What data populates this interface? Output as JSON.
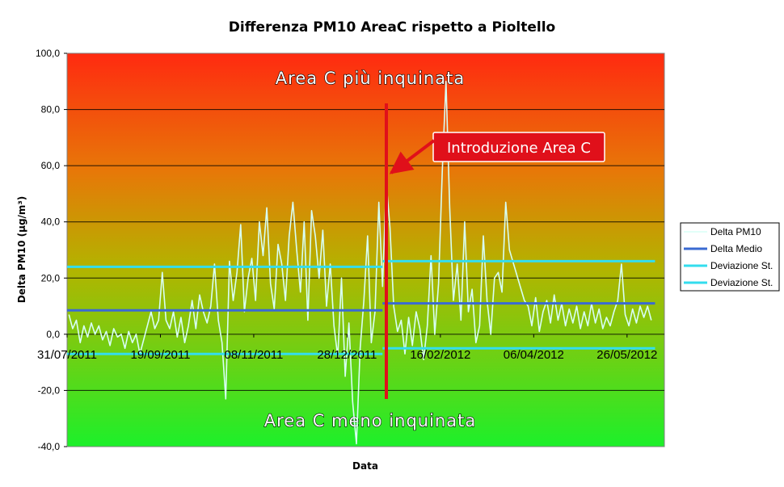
{
  "chart_data": {
    "type": "line",
    "title": "Differenza PM10 AreaC rispetto a Pioltello",
    "xlabel": "Data",
    "ylabel": "Delta PM10 (µg/m³)",
    "ylim": [
      -40,
      100
    ],
    "yticks": [
      "100,0",
      "80,0",
      "60,0",
      "40,0",
      "20,0",
      "0,0",
      "-20,0",
      "-40,0"
    ],
    "xlim": [
      "2011-07-31",
      "2012-06-15"
    ],
    "xticks": [
      {
        "date": "2011-07-31",
        "label": "31/07/2011"
      },
      {
        "date": "2011-09-19",
        "label": "19/09/2011"
      },
      {
        "date": "2011-11-08",
        "label": "08/11/2011"
      },
      {
        "date": "2011-12-28",
        "label": "28/12/2011"
      },
      {
        "date": "2012-02-16",
        "label": "16/02/2012"
      },
      {
        "date": "2012-04-06",
        "label": "06/04/2012"
      },
      {
        "date": "2012-05-26",
        "label": "26/05/2012"
      }
    ],
    "grid": true,
    "legend_position": "right",
    "annotations": {
      "top_region": "Area C più inquinata",
      "bottom_region": "Area C meno inquinata",
      "callout": "Introduzione Area C",
      "intervention_date": "2012-01-16"
    },
    "series": [
      {
        "name": "Delta PM10",
        "color": "#d8fff5",
        "kind": "line",
        "points": [
          [
            "2011-08-01",
            7
          ],
          [
            "2011-08-03",
            2
          ],
          [
            "2011-08-05",
            5
          ],
          [
            "2011-08-07",
            -3
          ],
          [
            "2011-08-09",
            3
          ],
          [
            "2011-08-11",
            -1
          ],
          [
            "2011-08-13",
            4
          ],
          [
            "2011-08-15",
            0
          ],
          [
            "2011-08-17",
            3
          ],
          [
            "2011-08-19",
            -2
          ],
          [
            "2011-08-21",
            1
          ],
          [
            "2011-08-23",
            -4
          ],
          [
            "2011-08-25",
            2
          ],
          [
            "2011-08-27",
            -1
          ],
          [
            "2011-08-29",
            0
          ],
          [
            "2011-08-31",
            -5
          ],
          [
            "2011-09-02",
            1
          ],
          [
            "2011-09-04",
            -3
          ],
          [
            "2011-09-06",
            0
          ],
          [
            "2011-09-08",
            -7
          ],
          [
            "2011-09-10",
            -2
          ],
          [
            "2011-09-12",
            3
          ],
          [
            "2011-09-14",
            8
          ],
          [
            "2011-09-16",
            2
          ],
          [
            "2011-09-18",
            5
          ],
          [
            "2011-09-20",
            22
          ],
          [
            "2011-09-22",
            5
          ],
          [
            "2011-09-24",
            2
          ],
          [
            "2011-09-26",
            8
          ],
          [
            "2011-09-28",
            -1
          ],
          [
            "2011-09-30",
            6
          ],
          [
            "2011-10-02",
            -3
          ],
          [
            "2011-10-04",
            3
          ],
          [
            "2011-10-06",
            12
          ],
          [
            "2011-10-08",
            2
          ],
          [
            "2011-10-10",
            14
          ],
          [
            "2011-10-12",
            8
          ],
          [
            "2011-10-14",
            4
          ],
          [
            "2011-10-16",
            10
          ],
          [
            "2011-10-18",
            25
          ],
          [
            "2011-10-20",
            5
          ],
          [
            "2011-10-22",
            -3
          ],
          [
            "2011-10-24",
            -23
          ],
          [
            "2011-10-26",
            26
          ],
          [
            "2011-10-28",
            12
          ],
          [
            "2011-10-30",
            22
          ],
          [
            "2011-11-01",
            39
          ],
          [
            "2011-11-03",
            8
          ],
          [
            "2011-11-05",
            20
          ],
          [
            "2011-11-07",
            27
          ],
          [
            "2011-11-09",
            12
          ],
          [
            "2011-11-11",
            40
          ],
          [
            "2011-11-13",
            28
          ],
          [
            "2011-11-15",
            45
          ],
          [
            "2011-11-17",
            18
          ],
          [
            "2011-11-19",
            9
          ],
          [
            "2011-11-21",
            32
          ],
          [
            "2011-11-23",
            25
          ],
          [
            "2011-11-25",
            12
          ],
          [
            "2011-11-27",
            35
          ],
          [
            "2011-11-29",
            47
          ],
          [
            "2011-12-01",
            30
          ],
          [
            "2011-12-03",
            15
          ],
          [
            "2011-12-05",
            40
          ],
          [
            "2011-12-07",
            5
          ],
          [
            "2011-12-09",
            44
          ],
          [
            "2011-12-11",
            35
          ],
          [
            "2011-12-13",
            20
          ],
          [
            "2011-12-15",
            37
          ],
          [
            "2011-12-17",
            10
          ],
          [
            "2011-12-19",
            25
          ],
          [
            "2011-12-21",
            3
          ],
          [
            "2011-12-23",
            -8
          ],
          [
            "2011-12-25",
            20
          ],
          [
            "2011-12-27",
            -15
          ],
          [
            "2011-12-29",
            4
          ],
          [
            "2011-12-31",
            -24
          ],
          [
            "2012-01-02",
            -39
          ],
          [
            "2012-01-04",
            -5
          ],
          [
            "2012-01-06",
            12
          ],
          [
            "2012-01-08",
            35
          ],
          [
            "2012-01-10",
            -3
          ],
          [
            "2012-01-12",
            8
          ],
          [
            "2012-01-14",
            47
          ],
          [
            "2012-01-16",
            17
          ],
          [
            "2012-01-18",
            54
          ],
          [
            "2012-01-20",
            38
          ],
          [
            "2012-01-22",
            10
          ],
          [
            "2012-01-24",
            1
          ],
          [
            "2012-01-26",
            5
          ],
          [
            "2012-01-28",
            -7
          ],
          [
            "2012-01-30",
            6
          ],
          [
            "2012-02-01",
            -4
          ],
          [
            "2012-02-03",
            8
          ],
          [
            "2012-02-05",
            2
          ],
          [
            "2012-02-07",
            -9
          ],
          [
            "2012-02-09",
            3
          ],
          [
            "2012-02-11",
            28
          ],
          [
            "2012-02-13",
            0
          ],
          [
            "2012-02-15",
            18
          ],
          [
            "2012-02-17",
            58
          ],
          [
            "2012-02-19",
            90
          ],
          [
            "2012-02-21",
            45
          ],
          [
            "2012-02-23",
            12
          ],
          [
            "2012-02-25",
            25
          ],
          [
            "2012-02-27",
            5
          ],
          [
            "2012-02-29",
            40
          ],
          [
            "2012-03-02",
            8
          ],
          [
            "2012-03-04",
            16
          ],
          [
            "2012-03-06",
            -3
          ],
          [
            "2012-03-08",
            3
          ],
          [
            "2012-03-10",
            35
          ],
          [
            "2012-03-12",
            12
          ],
          [
            "2012-03-14",
            0
          ],
          [
            "2012-03-16",
            20
          ],
          [
            "2012-03-18",
            22
          ],
          [
            "2012-03-20",
            15
          ],
          [
            "2012-03-22",
            47
          ],
          [
            "2012-03-24",
            30
          ],
          [
            "2012-04-01",
            12
          ],
          [
            "2012-04-03",
            10
          ],
          [
            "2012-04-05",
            3
          ],
          [
            "2012-04-07",
            13
          ],
          [
            "2012-04-09",
            1
          ],
          [
            "2012-04-11",
            8
          ],
          [
            "2012-04-13",
            12
          ],
          [
            "2012-04-15",
            4
          ],
          [
            "2012-04-17",
            14
          ],
          [
            "2012-04-19",
            5
          ],
          [
            "2012-04-21",
            11
          ],
          [
            "2012-04-23",
            3
          ],
          [
            "2012-04-25",
            9
          ],
          [
            "2012-04-27",
            4
          ],
          [
            "2012-04-29",
            10
          ],
          [
            "2012-05-01",
            2
          ],
          [
            "2012-05-03",
            8
          ],
          [
            "2012-05-05",
            3
          ],
          [
            "2012-05-07",
            11
          ],
          [
            "2012-05-09",
            4
          ],
          [
            "2012-05-11",
            9
          ],
          [
            "2012-05-13",
            2
          ],
          [
            "2012-05-15",
            6
          ],
          [
            "2012-05-17",
            3
          ],
          [
            "2012-05-19",
            8
          ],
          [
            "2012-05-21",
            12
          ],
          [
            "2012-05-23",
            25
          ],
          [
            "2012-05-25",
            7
          ],
          [
            "2012-05-27",
            3
          ],
          [
            "2012-05-29",
            9
          ],
          [
            "2012-05-31",
            4
          ],
          [
            "2012-06-02",
            10
          ],
          [
            "2012-06-04",
            6
          ],
          [
            "2012-06-06",
            10
          ],
          [
            "2012-06-08",
            5
          ]
        ]
      },
      {
        "name": "Delta Medio",
        "color": "#3a6ad2",
        "kind": "segments",
        "segments": [
          {
            "from": "2011-07-31",
            "to": "2012-01-16",
            "value": 8.5
          },
          {
            "from": "2012-01-16",
            "to": "2012-06-10",
            "value": 11
          }
        ]
      },
      {
        "name": "Deviazione St.",
        "color": "#33ddee",
        "kind": "segments",
        "segments": [
          {
            "from": "2011-07-31",
            "to": "2012-01-16",
            "value": 24
          },
          {
            "from": "2012-01-16",
            "to": "2012-06-10",
            "value": 26
          }
        ]
      },
      {
        "name": "Deviazione St.",
        "color": "#33ddee",
        "kind": "segments",
        "segments": [
          {
            "from": "2011-07-31",
            "to": "2012-01-16",
            "value": -7
          },
          {
            "from": "2012-01-16",
            "to": "2012-06-10",
            "value": -5
          }
        ]
      }
    ]
  }
}
